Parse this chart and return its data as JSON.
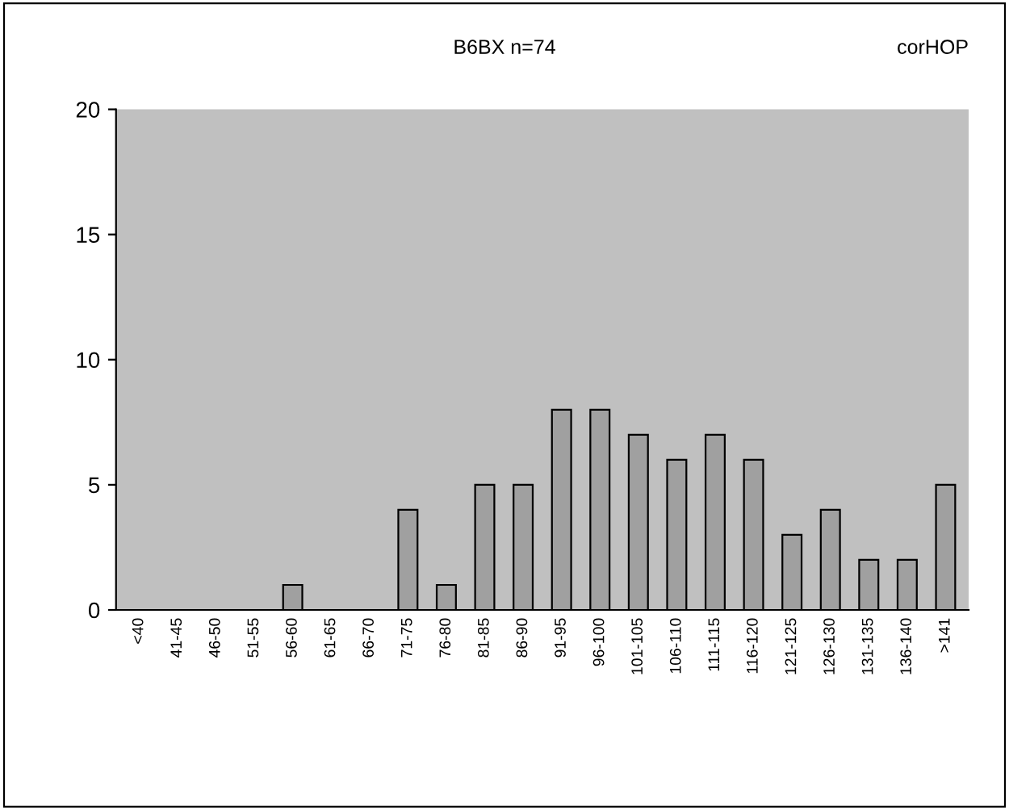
{
  "chart_data": {
    "type": "bar",
    "title": "B6BX n=74",
    "annotations": [
      "corHOP"
    ],
    "categories": [
      "<40",
      "41-45",
      "46-50",
      "51-55",
      "56-60",
      "61-65",
      "66-70",
      "71-75",
      "76-80",
      "81-85",
      "86-90",
      "91-95",
      "96-100",
      "101-105",
      "106-110",
      "111-115",
      "116-120",
      "121-125",
      "126-130",
      "131-135",
      "136-140",
      ">141"
    ],
    "values": [
      0,
      0,
      0,
      0,
      1,
      0,
      0,
      4,
      1,
      5,
      5,
      8,
      8,
      7,
      6,
      7,
      6,
      3,
      4,
      2,
      2,
      5
    ],
    "color": "#a0a0a0",
    "ylim": [
      0,
      20
    ],
    "yticks": [
      0,
      5,
      10,
      15,
      20
    ],
    "grid": false,
    "legend": false
  }
}
